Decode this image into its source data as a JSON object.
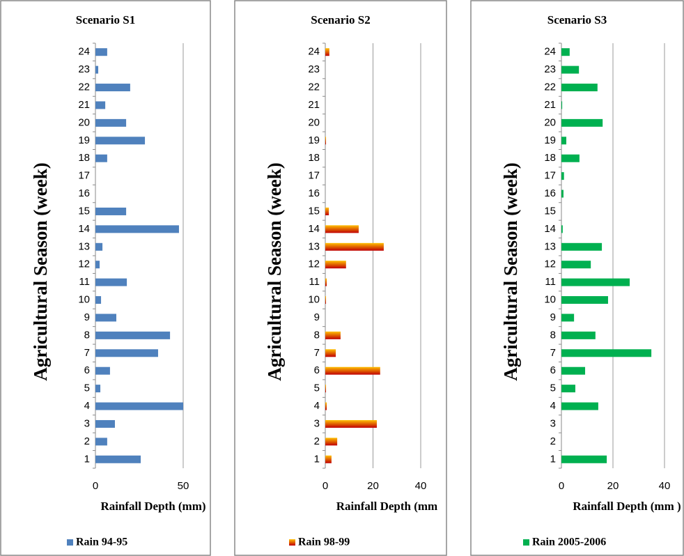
{
  "chart_data": [
    {
      "type": "bar",
      "orientation": "horizontal",
      "title": "Scenario S1",
      "y_label": "Agricultural Season (week)",
      "x_label": "Rainfall Depth (mm)",
      "categories": [
        "1",
        "2",
        "3",
        "4",
        "5",
        "6",
        "7",
        "8",
        "9",
        "10",
        "11",
        "12",
        "13",
        "14",
        "15",
        "16",
        "17",
        "18",
        "19",
        "20",
        "21",
        "22",
        "23",
        "24"
      ],
      "series": [
        {
          "name": "Rain 94-95",
          "color": "#4f81bd",
          "values": [
            25.8,
            6.7,
            11.1,
            50,
            2.8,
            8.3,
            35.7,
            42.5,
            11.9,
            3.2,
            17.9,
            2.4,
            4,
            47.6,
            17.5,
            0,
            0,
            6.7,
            28.2,
            17.5,
            5.6,
            19.8,
            1.6,
            6.7
          ]
        }
      ],
      "xlim": [
        0,
        50
      ],
      "xticks": [
        0,
        50
      ],
      "grid": true,
      "legend": "bottom"
    },
    {
      "type": "bar",
      "orientation": "horizontal",
      "title": "Scenario S2",
      "y_label": "Agricultural Season (week)",
      "x_label": "Rainfall Depth (mm",
      "categories": [
        "1",
        "2",
        "3",
        "4",
        "5",
        "6",
        "7",
        "8",
        "9",
        "10",
        "11",
        "12",
        "13",
        "14",
        "15",
        "16",
        "17",
        "18",
        "19",
        "20",
        "21",
        "22",
        "23",
        "24"
      ],
      "series": [
        {
          "name": "Rain 98-99",
          "color": [
            "#c00000",
            "#ffc000"
          ],
          "values": [
            2.6,
            5,
            21.6,
            0.6,
            0.3,
            23,
            4.4,
            6.4,
            0,
            0.3,
            0.6,
            8.7,
            24.5,
            14,
            1.5,
            0,
            0,
            0,
            0.3,
            0,
            0,
            0,
            0,
            1.7
          ]
        }
      ],
      "xlim": [
        0,
        40
      ],
      "xticks": [
        0,
        20,
        40
      ],
      "grid": true,
      "legend": "bottom"
    },
    {
      "type": "bar",
      "orientation": "horizontal",
      "title": "Scenario S3",
      "y_label": "Agricultural Season (week)",
      "x_label": "Rainfall Depth (mm )",
      "categories": [
        "1",
        "2",
        "3",
        "4",
        "5",
        "6",
        "7",
        "8",
        "9",
        "10",
        "11",
        "12",
        "13",
        "14",
        "15",
        "16",
        "17",
        "18",
        "19",
        "20",
        "21",
        "22",
        "23",
        "24"
      ],
      "series": [
        {
          "name": "Rain 2005-2006",
          "color": "#00b050",
          "values": [
            17.6,
            0,
            0,
            14.3,
            5.4,
            9.2,
            34.9,
            13.2,
            4.9,
            18.1,
            26.5,
            11.4,
            15.7,
            0.5,
            0,
            0.8,
            1,
            7,
            1.9,
            16,
            0.3,
            14,
            6.8,
            3.2
          ]
        }
      ],
      "xlim": [
        0,
        40
      ],
      "xticks": [
        0,
        20,
        40
      ],
      "grid": true,
      "legend": "bottom"
    }
  ]
}
